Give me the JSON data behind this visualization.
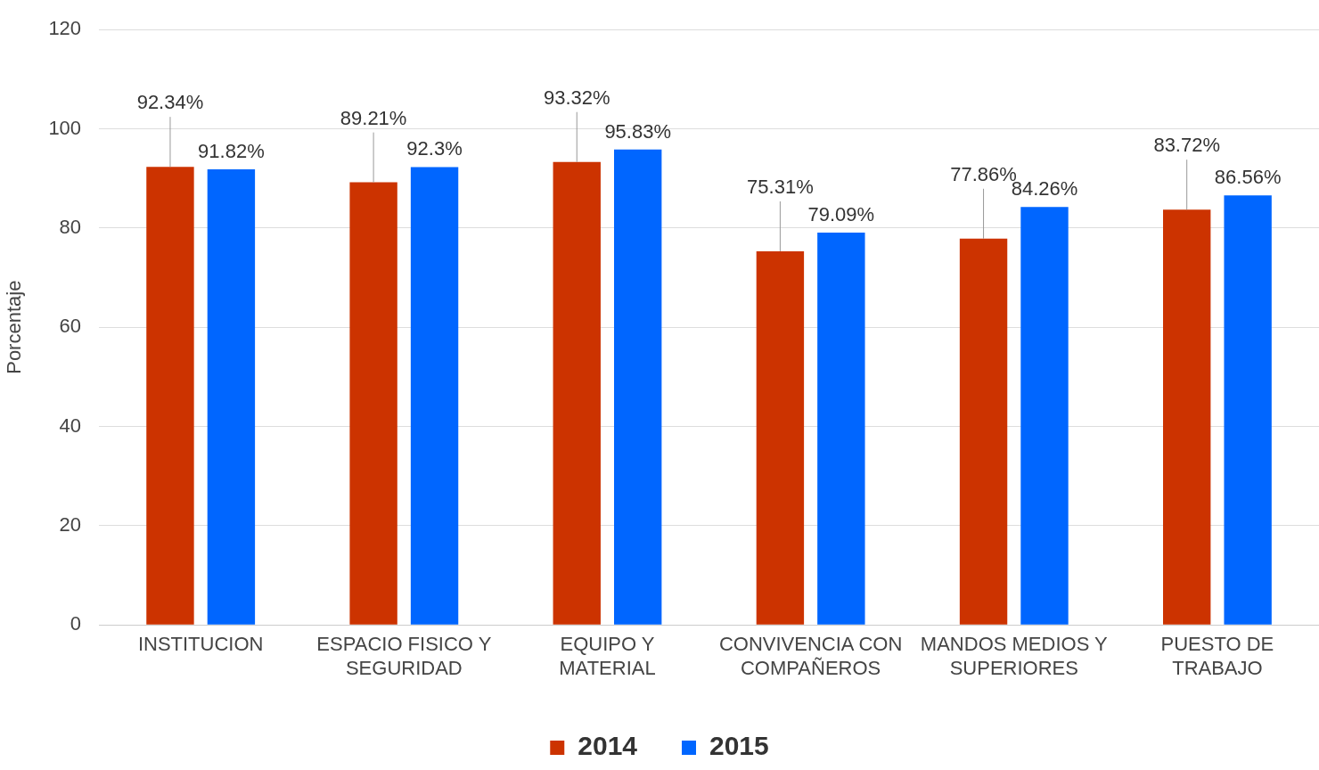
{
  "chart_data": {
    "type": "bar",
    "ylabel": "Porcentaje",
    "categories": [
      "INSTITUCION",
      "ESPACIO FISICO Y SEGURIDAD",
      "EQUIPO Y MATERIAL",
      "CONVIVENCIA CON COMPAÑEROS",
      "MANDOS MEDIOS Y SUPERIORES",
      "PUESTO DE TRABAJO"
    ],
    "series": [
      {
        "name": "2014",
        "color": "#cc3300",
        "values": [
          92.34,
          89.21,
          93.32,
          75.31,
          77.86,
          83.72
        ],
        "value_labels": [
          "92.34%",
          "89.21%",
          "93.32%",
          "75.31%",
          "77.86%",
          "83.72%"
        ]
      },
      {
        "name": "2015",
        "color": "#0066ff",
        "values": [
          91.82,
          92.3,
          95.83,
          79.09,
          84.26,
          86.56
        ],
        "value_labels": [
          "91.82%",
          "92.3%",
          "95.83%",
          "79.09%",
          "84.26%",
          "86.56%"
        ]
      }
    ],
    "ylim": [
      0,
      120
    ],
    "yticks": [
      0,
      20,
      40,
      60,
      80,
      100,
      120
    ],
    "grid": "y",
    "legend": "bottom"
  }
}
